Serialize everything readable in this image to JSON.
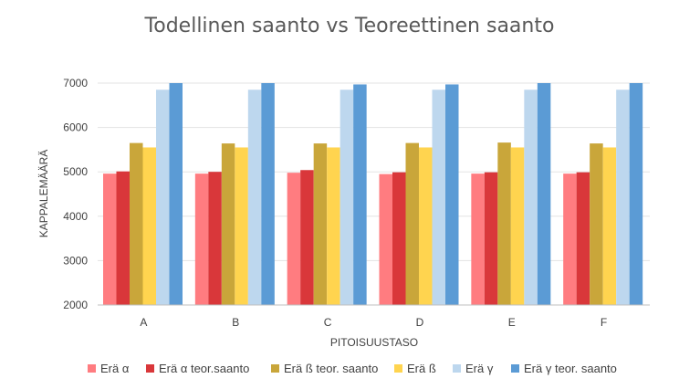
{
  "chart_data": {
    "type": "bar",
    "title": "Todellinen saanto vs Teoreettinen saanto",
    "xlabel": "PITOISUUSTASO",
    "ylabel": "KAPPALEMÄÄRÄ",
    "ylim": [
      2000,
      7000
    ],
    "yticks": [
      2000,
      3000,
      4000,
      5000,
      6000,
      7000
    ],
    "categories": [
      "A",
      "B",
      "C",
      "D",
      "E",
      "F"
    ],
    "legend_position": "bottom",
    "grid": true,
    "series": [
      {
        "name": "Erä α",
        "color": "#ff7c80",
        "values": [
          4960,
          4960,
          4980,
          4950,
          4960,
          4960
        ]
      },
      {
        "name": "Erä α teor.saanto",
        "color": "#d9373a",
        "values": [
          5010,
          5000,
          5040,
          4990,
          4990,
          4990
        ]
      },
      {
        "name": "Erä ß teor. saanto",
        "color": "#c9a63a",
        "values": [
          5650,
          5640,
          5640,
          5650,
          5660,
          5640
        ]
      },
      {
        "name": "Erä ß",
        "color": "#ffd44f",
        "values": [
          5550,
          5550,
          5550,
          5550,
          5550,
          5550
        ]
      },
      {
        "name": "Erä γ",
        "color": "#bdd7ee",
        "values": [
          6850,
          6850,
          6850,
          6850,
          6850,
          6850
        ]
      },
      {
        "name": "Erä γ teor. saanto",
        "color": "#5b9bd5",
        "values": [
          7000,
          7000,
          6970,
          6970,
          7000,
          7000
        ]
      }
    ]
  }
}
